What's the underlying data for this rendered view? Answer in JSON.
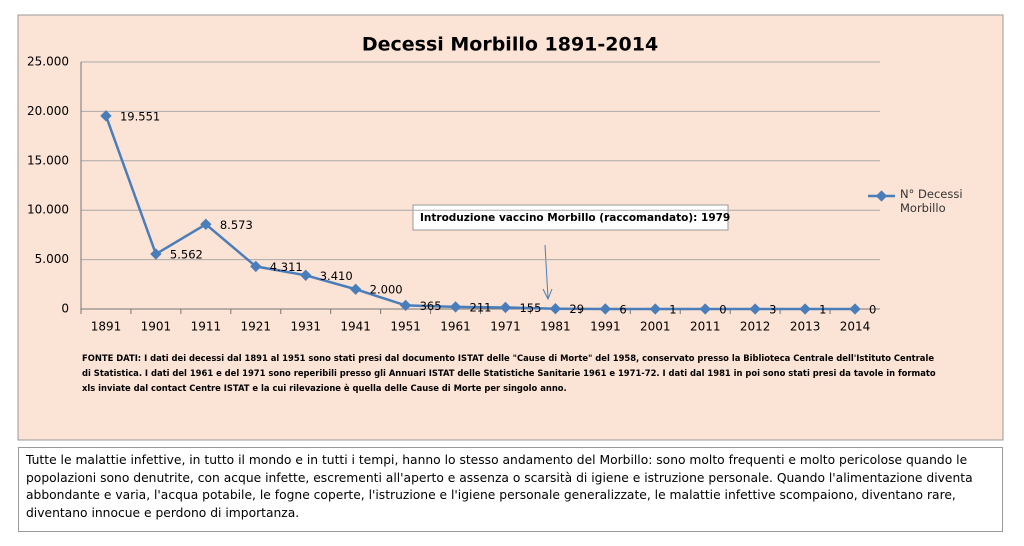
{
  "chart_data": {
    "type": "line",
    "title": "Decessi Morbillo 1891-2014",
    "categories": [
      "1891",
      "1901",
      "1911",
      "1921",
      "1931",
      "1941",
      "1951",
      "1961",
      "1971",
      "1981",
      "1991",
      "2001",
      "2011",
      "2012",
      "2013",
      "2014"
    ],
    "series": [
      {
        "name": "N° Decessi Morbillo",
        "color": "#4a7ebb",
        "values": [
          19551,
          5562,
          8573,
          4311,
          3410,
          2000,
          365,
          211,
          155,
          29,
          6,
          1,
          0,
          3,
          1,
          0
        ],
        "value_labels": [
          "19.551",
          "5.562",
          "8.573",
          "4.311",
          "3.410",
          "2.000",
          "365",
          "211",
          "155",
          "29",
          "6",
          "1",
          "0",
          "3",
          "1",
          "0"
        ]
      }
    ],
    "ylim": [
      0,
      25000
    ],
    "yticks": [
      0,
      {
        "value": 5000,
        "label": "5.000"
      },
      {
        "value": 10000,
        "label": "10.000"
      },
      {
        "value": 15000,
        "label": "15.000"
      },
      {
        "value": 20000,
        "label": "20.000"
      },
      {
        "value": 25000,
        "label": "25.000"
      }
    ],
    "grid": true,
    "legend": "right",
    "annotation": "Introduzione vaccino Morbillo (raccomandato): 1979",
    "source_note": "FONTE DATI: I dati dei decessi dal 1891 al 1951 sono stati presi dal documento ISTAT delle \"Cause di Morte\"  del 1958, conservato presso la Biblioteca Centrale dell'Istituto Centrale di Statistica. I dati del 1961 e del 1971 sono reperibili presso gli Annuari ISTAT delle Statistiche Sanitarie 1961 e 1971-72. I dati dal 1981 in poi sono stati presi da tavole in formato xls inviate dal contact Centre ISTAT e la cui rilevazione è quella delle Cause di Morte per singolo anno."
  },
  "body_text": "Tutte le malattie infettive, in tutto il mondo e in tutti i tempi, hanno lo stesso andamento del Morbillo: sono molto frequenti e molto pericolose quando le popolazioni sono denutrite, con acque infette,  escrementi all'aperto e assenza o scarsità di igiene e istruzione personale. Quando l'alimentazione diventa abbondante e varia, l'acqua potabile, le fogne coperte, l'istruzione e l'igiene personale generalizzate, le malattie infettive scompaiono, diventano rare, diventano innocue e perdono di importanza."
}
